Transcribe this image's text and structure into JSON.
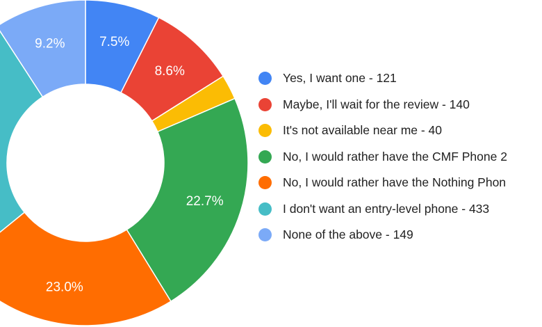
{
  "chart_data": {
    "type": "pie",
    "donut": true,
    "legend_position": "right",
    "start_angle_deg": 0,
    "direction": "clockwise",
    "slices": [
      {
        "legend": "Yes, I want one - 121",
        "value": 121,
        "label": "7.5%",
        "color": "#4285F4"
      },
      {
        "legend": "Maybe, I'll wait for the review - 140",
        "value": 140,
        "label": "8.6%",
        "color": "#EA4335"
      },
      {
        "legend": "It's not available near me - 40",
        "value": 40,
        "label": "",
        "color": "#FBBC04"
      },
      {
        "legend": "No, I would rather have the CMF Phone 2",
        "value": 368,
        "label": "22.7%",
        "color": "#34A853"
      },
      {
        "legend": "No, I would rather have the Nothing Phon",
        "value": 373,
        "label": "23.0%",
        "color": "#FF6D01"
      },
      {
        "legend": "I don't want an entry-level phone - 433",
        "value": 433,
        "label": "",
        "color": "#46BDC6"
      },
      {
        "legend": "None of the above - 149",
        "value": 149,
        "label": "9.2%",
        "color": "#7BAAF7"
      }
    ]
  }
}
